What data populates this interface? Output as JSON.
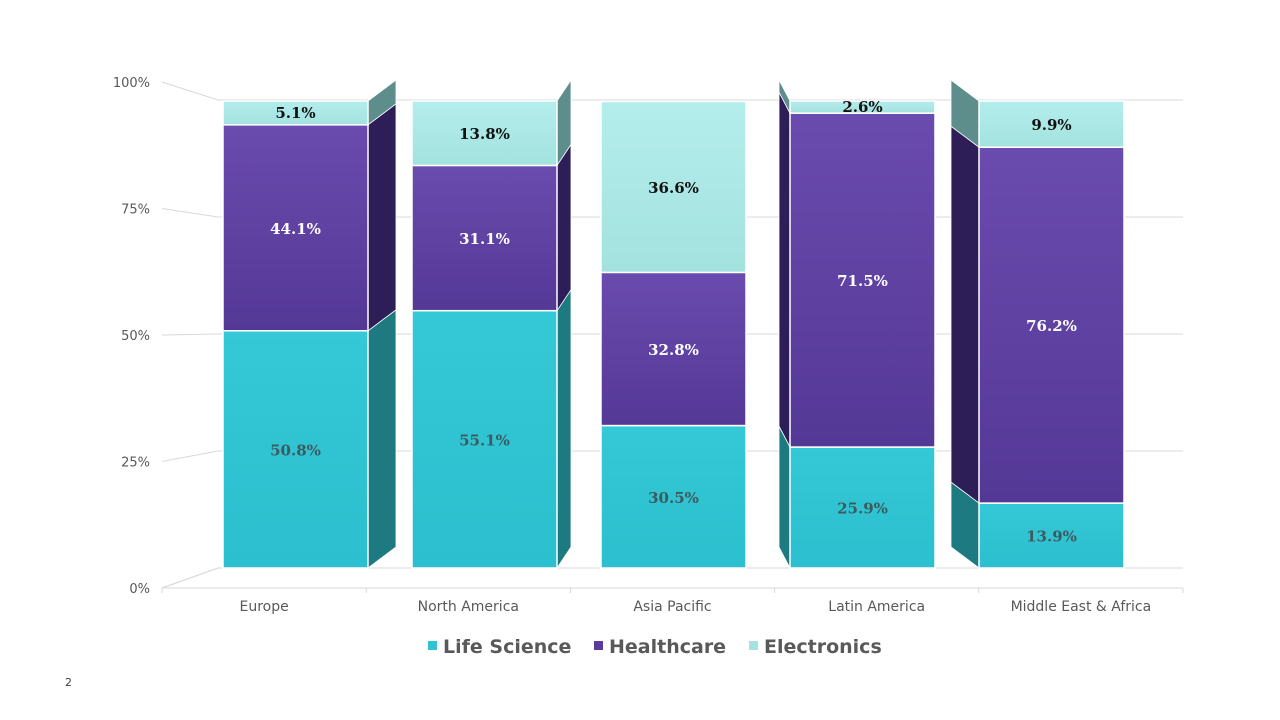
{
  "page": {
    "number": "2"
  },
  "chart_data": {
    "type": "bar",
    "stacked": true,
    "percent_stacked": true,
    "style": "3d-column",
    "categories": [
      "Europe",
      "North America",
      "Asia Pacific",
      "Latin America",
      "Middle East & Africa"
    ],
    "series": [
      {
        "name": "Life Science",
        "values": [
          50.8,
          55.1,
          30.5,
          25.9,
          13.9
        ],
        "labels": [
          "50.8%",
          "55.1%",
          "30.5%",
          "25.9%",
          "13.9%"
        ],
        "color": "#2FC3D3",
        "side_color": "#1C7A80",
        "label_color": "#3D5A5E"
      },
      {
        "name": "Healthcare",
        "values": [
          44.1,
          31.1,
          32.8,
          71.5,
          76.2
        ],
        "labels": [
          "44.1%",
          "31.1%",
          "32.8%",
          "71.5%",
          "76.2%"
        ],
        "color": "#5A3A9C",
        "side_color": "#2D1E57",
        "label_color": "#FFFFFF"
      },
      {
        "name": "Electronics",
        "values": [
          5.1,
          13.8,
          36.6,
          2.6,
          9.9
        ],
        "labels": [
          "5.1%",
          "13.8%",
          "36.6%",
          "2.6%",
          "9.9%"
        ],
        "color": "#A6E3E0",
        "side_color": "#5E8E8C",
        "label_color": "#111111"
      }
    ],
    "y_ticks": [
      "0%",
      "25%",
      "50%",
      "75%",
      "100%"
    ],
    "ylim": [
      0,
      100
    ],
    "grid": true,
    "legend_position": "bottom"
  }
}
